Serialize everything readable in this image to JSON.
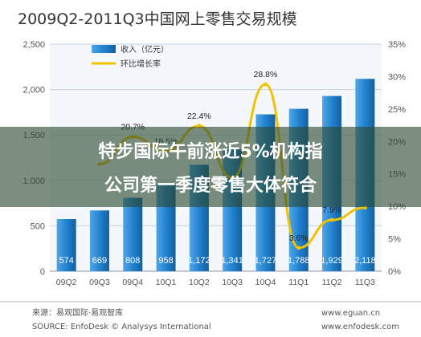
{
  "chart_data": {
    "type": "bar",
    "title": "2009Q2-2011Q3中国网上零售交易规模",
    "categories": [
      "09Q2",
      "09Q3",
      "09Q4",
      "10Q1",
      "10Q2",
      "10Q3",
      "10Q4",
      "11Q1",
      "11Q2",
      "11Q3"
    ],
    "series": [
      {
        "name": "收入（亿元）",
        "type": "bar",
        "axis": "left",
        "color": "#1f7fcc",
        "values": [
          574,
          669,
          808,
          958,
          1172,
          1341,
          1727,
          1788,
          1929,
          2118
        ],
        "labels": [
          "574",
          "669",
          "808",
          "958",
          "1,172",
          "1,341",
          "1,727",
          "1,788",
          "1,929",
          "2,118"
        ]
      },
      {
        "name": "环比增长率",
        "type": "line",
        "axis": "right",
        "color": "#f2c200",
        "values": [
          null,
          16.5,
          20.7,
          18.5,
          22.4,
          14.4,
          28.8,
          3.6,
          7.9,
          9.8
        ],
        "labels": [
          "",
          "",
          "20.7%",
          "18.5%",
          "22.4%",
          "",
          "28.8%",
          "3.6%",
          "7.9%",
          ""
        ]
      }
    ],
    "yticks_left": [
      "0",
      "500",
      "1,000",
      "1,500",
      "2,000",
      "2,500"
    ],
    "yticks_right": [
      "0%",
      "5%",
      "10%",
      "15%",
      "20%",
      "25%",
      "30%",
      "35%"
    ],
    "ylim_left": [
      0,
      2500
    ],
    "ylim_right": [
      0,
      35
    ],
    "grid": true,
    "legend_position": "top-left"
  },
  "banner": {
    "line1": "特步国际午前涨近5%机构指",
    "line2": "公司第一季度零售大体符合"
  },
  "source_line1": "来源：易观国际·易观智库",
  "source_line2": "SOURCE: EnfoDesk © Analysys International",
  "website": "www.eguan.cn",
  "website2": "www.enfodesk.com"
}
